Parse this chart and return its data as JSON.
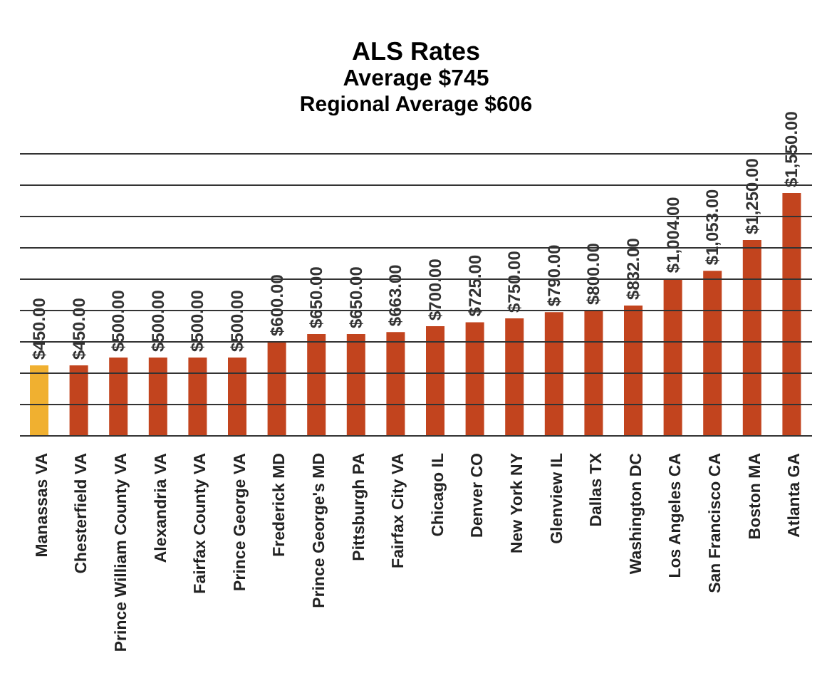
{
  "chart_data": {
    "type": "bar",
    "title": "ALS Rates",
    "subtitle": "Average $745",
    "annotations": [
      "Regional Average $606"
    ],
    "categories": [
      "Manassas VA",
      "Chesterfield VA",
      "Prince William County VA",
      "Alexandria VA",
      "Fairfax County VA",
      "Prince George VA",
      "Frederick MD",
      "Prince George's MD",
      "Pittsburgh PA",
      "Fairfax City VA",
      "Chicago IL",
      "Denver CO",
      "New York NY",
      "Glenview IL",
      "Dallas TX",
      "Washington DC",
      "Los Angeles CA",
      "San Francisco CA",
      "Boston MA",
      "Atlanta GA"
    ],
    "values": [
      450,
      450,
      500,
      500,
      500,
      500,
      600,
      650,
      650,
      663,
      700,
      725,
      750,
      790,
      800,
      832,
      1004,
      1053,
      1250,
      1550
    ],
    "value_labels": [
      "$450.00",
      "$450.00",
      "$500.00",
      "$500.00",
      "$500.00",
      "$500.00",
      "$600.00",
      "$650.00",
      "$650.00",
      "$663.00",
      "$700.00",
      "$725.00",
      "$750.00",
      "$790.00",
      "$800.00",
      "$832.00",
      "$1,004.00",
      "$1,053.00",
      "$1,250.00",
      "$1,550.00"
    ],
    "colors": [
      "#f0b030",
      "#c2441e",
      "#c2441e",
      "#c2441e",
      "#c2441e",
      "#c2441e",
      "#c2441e",
      "#c2441e",
      "#c2441e",
      "#c2441e",
      "#c2441e",
      "#c2441e",
      "#c2441e",
      "#c2441e",
      "#c2441e",
      "#c2441e",
      "#c2441e",
      "#c2441e",
      "#c2441e",
      "#c2441e"
    ],
    "ylim": [
      0,
      1800
    ],
    "yticks": [
      {
        "value": 0,
        "label": null
      },
      {
        "value": 200,
        "label": null
      },
      {
        "value": 400,
        "label": null
      },
      {
        "value": 600,
        "label": null
      },
      {
        "value": 800,
        "label": null
      },
      {
        "value": 1000,
        "label": null
      },
      {
        "value": 1200,
        "label": null
      },
      {
        "value": 1400,
        "label": null
      },
      {
        "value": 1600,
        "label": null
      },
      {
        "value": 1800,
        "label": null
      }
    ],
    "grid": "y",
    "tick_labels": "x",
    "legend": false
  }
}
